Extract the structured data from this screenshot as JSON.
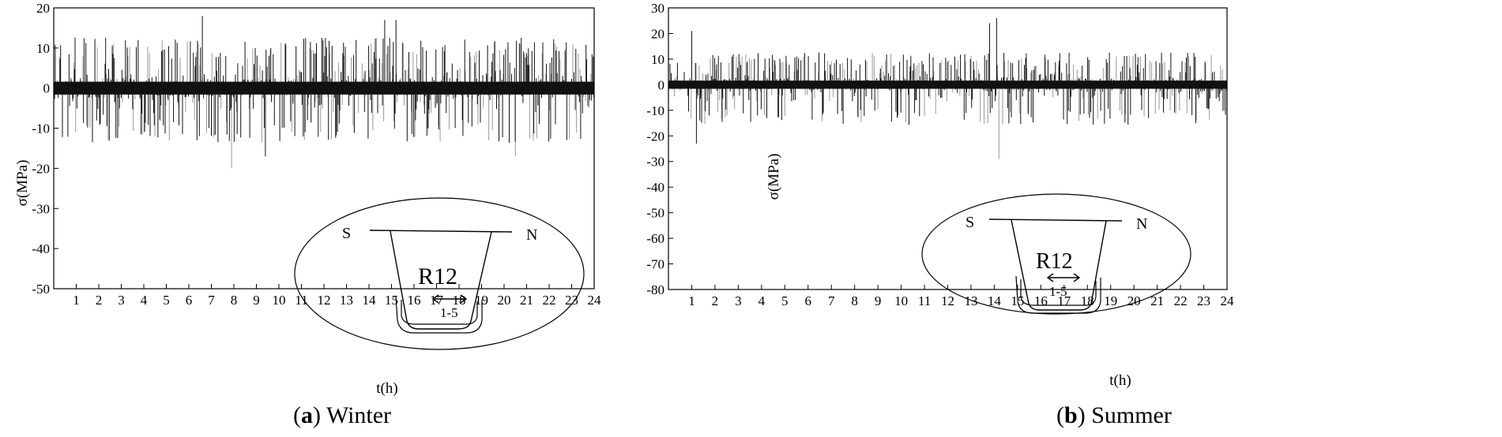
{
  "chart_data": [
    {
      "type": "line",
      "panel": "a",
      "caption_letter": "a",
      "caption_text": "Winter",
      "xlabel": "t(h)",
      "ylabel": "σ(MPa)",
      "xlim": [
        0,
        24
      ],
      "ylim": [
        -50,
        20
      ],
      "x_ticks": [
        "1",
        "2",
        "3",
        "4",
        "5",
        "6",
        "7",
        "8",
        "9",
        "10",
        "11",
        "12",
        "13",
        "14",
        "15",
        "16",
        "17",
        "18",
        "19",
        "20",
        "21",
        "22",
        "23",
        "24"
      ],
      "y_ticks": [
        "20",
        "10",
        "0",
        "-10",
        "-20",
        "-30",
        "-40",
        "-50"
      ],
      "signal": {
        "description_range": [
          -20,
          18
        ],
        "typical_positive_peak": 12,
        "typical_negative_peak": -13,
        "max": 18,
        "min": -20,
        "notable_peaks": [
          {
            "x": 6.6,
            "y": 18
          },
          {
            "x": 7.9,
            "y": -20
          },
          {
            "x": 9.4,
            "y": -17
          },
          {
            "x": 14.7,
            "y": 17
          },
          {
            "x": 15.2,
            "y": 17
          },
          {
            "x": 20.5,
            "y": -17
          }
        ]
      },
      "inset": {
        "left_label": "S",
        "right_label": "N",
        "rib_label": "R12",
        "gauge_label": "1-5"
      }
    },
    {
      "type": "line",
      "panel": "b",
      "caption_letter": "b",
      "caption_text": "Summer",
      "xlabel": "t(h)",
      "ylabel": "σ(MPa)",
      "xlim": [
        0,
        24
      ],
      "ylim": [
        -80,
        30
      ],
      "x_ticks": [
        "1",
        "2",
        "3",
        "4",
        "5",
        "6",
        "7",
        "8",
        "9",
        "10",
        "11",
        "12",
        "13",
        "14",
        "15",
        "16",
        "17",
        "18",
        "19",
        "20",
        "21",
        "22",
        "23",
        "24"
      ],
      "y_ticks": [
        "30",
        "20",
        "10",
        "0",
        "-10",
        "-20",
        "-30",
        "-40",
        "-50",
        "-60",
        "-70",
        "-80"
      ],
      "signal": {
        "typical_positive_peak": 12,
        "typical_negative_peak": -15,
        "max": 26,
        "min": -29,
        "notable_peaks": [
          {
            "x": 1.0,
            "y": 21
          },
          {
            "x": 1.2,
            "y": -23
          },
          {
            "x": 13.8,
            "y": 24
          },
          {
            "x": 14.1,
            "y": 26
          },
          {
            "x": 14.2,
            "y": -29
          }
        ]
      },
      "inset": {
        "left_label": "S",
        "right_label": "N",
        "rib_label": "R12",
        "gauge_label": "1-5"
      }
    }
  ]
}
